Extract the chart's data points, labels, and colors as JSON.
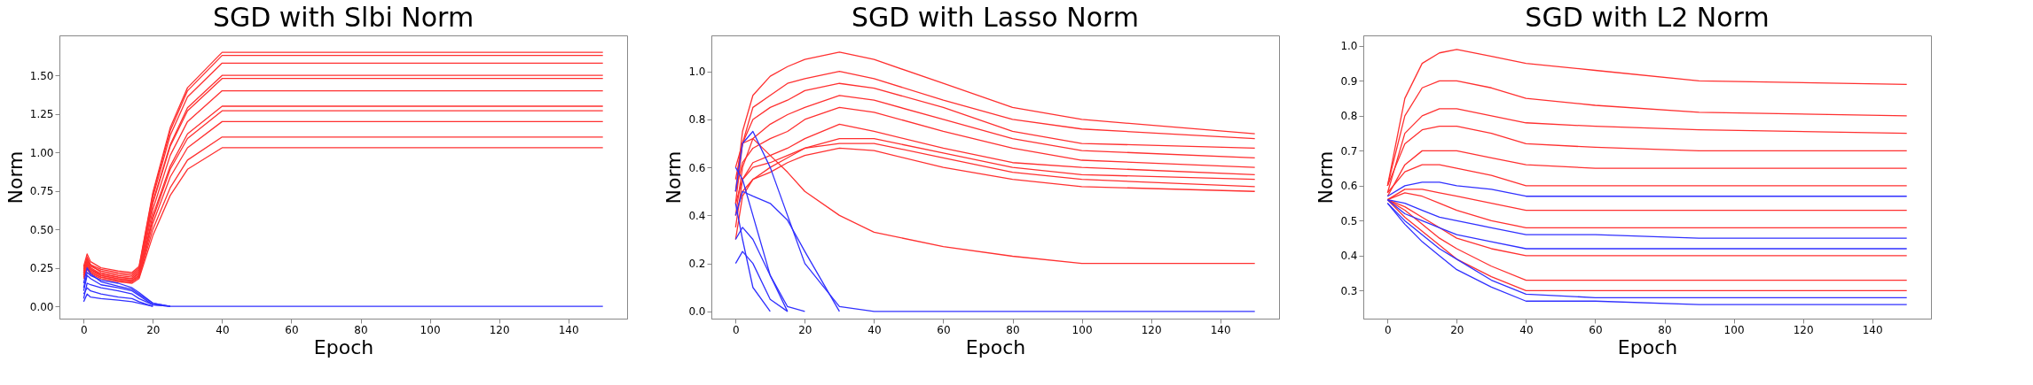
{
  "chart_data": [
    {
      "type": "line",
      "title": "SGD with Slbi Norm",
      "xlabel": "Epoch",
      "ylabel": "Norm",
      "x": [
        0,
        1,
        2,
        5,
        10,
        14,
        16,
        20,
        25,
        30,
        40,
        150
      ],
      "xlim": [
        -7,
        157
      ],
      "xticks": [
        0,
        20,
        40,
        60,
        80,
        100,
        120,
        140
      ],
      "ylim": [
        -0.08,
        1.76
      ],
      "yticks": [
        {
          "value": 0,
          "label": "0.00"
        },
        {
          "value": 0.25,
          "label": "0.25"
        },
        {
          "value": 0.5,
          "label": "0.50"
        },
        {
          "value": 0.75,
          "label": "0.75"
        },
        {
          "value": 1,
          "label": "1.00"
        },
        {
          "value": 1.25,
          "label": "1.25"
        },
        {
          "value": 1.5,
          "label": "1.50"
        }
      ],
      "series": [
        {
          "color": "#ff3030",
          "values": [
            0.26,
            0.34,
            0.29,
            0.25,
            0.23,
            0.22,
            0.26,
            0.74,
            1.16,
            1.42,
            1.65,
            1.65
          ]
        },
        {
          "color": "#ff3030",
          "values": [
            0.24,
            0.32,
            0.27,
            0.24,
            0.22,
            0.21,
            0.25,
            0.73,
            1.14,
            1.4,
            1.63,
            1.63
          ]
        },
        {
          "color": "#ff3030",
          "values": [
            0.22,
            0.3,
            0.26,
            0.23,
            0.21,
            0.2,
            0.24,
            0.71,
            1.11,
            1.36,
            1.58,
            1.58
          ]
        },
        {
          "color": "#ff3030",
          "values": [
            0.25,
            0.31,
            0.27,
            0.22,
            0.2,
            0.19,
            0.23,
            0.68,
            1.05,
            1.29,
            1.5,
            1.5
          ]
        },
        {
          "color": "#ff3030",
          "values": [
            0.23,
            0.29,
            0.25,
            0.21,
            0.19,
            0.18,
            0.22,
            0.67,
            1.04,
            1.27,
            1.48,
            1.48
          ]
        },
        {
          "color": "#ff3030",
          "values": [
            0.21,
            0.28,
            0.24,
            0.21,
            0.19,
            0.18,
            0.21,
            0.63,
            0.98,
            1.2,
            1.4,
            1.4
          ]
        },
        {
          "color": "#ff3030",
          "values": [
            0.22,
            0.27,
            0.24,
            0.2,
            0.18,
            0.17,
            0.2,
            0.59,
            0.91,
            1.12,
            1.3,
            1.3
          ]
        },
        {
          "color": "#ff3030",
          "values": [
            0.2,
            0.26,
            0.23,
            0.2,
            0.18,
            0.17,
            0.2,
            0.57,
            0.89,
            1.09,
            1.27,
            1.27
          ]
        },
        {
          "color": "#ff3030",
          "values": [
            0.19,
            0.25,
            0.22,
            0.19,
            0.17,
            0.16,
            0.19,
            0.54,
            0.84,
            1.03,
            1.2,
            1.2
          ]
        },
        {
          "color": "#ff3030",
          "values": [
            0.2,
            0.26,
            0.22,
            0.19,
            0.17,
            0.16,
            0.19,
            0.5,
            0.77,
            0.95,
            1.1,
            1.1
          ]
        },
        {
          "color": "#ff3030",
          "values": [
            0.18,
            0.24,
            0.21,
            0.18,
            0.16,
            0.15,
            0.18,
            0.46,
            0.72,
            0.89,
            1.03,
            1.03
          ]
        },
        {
          "color": "#3030ff",
          "values": [
            0.15,
            0.25,
            0.21,
            0.16,
            0.13,
            0.11,
            0.08,
            0.02,
            0,
            0,
            0,
            0
          ]
        },
        {
          "color": "#3030ff",
          "values": [
            0.1,
            0.2,
            0.18,
            0.14,
            0.12,
            0.1,
            0.07,
            0.01,
            0,
            null,
            null,
            null
          ]
        },
        {
          "color": "#3030ff",
          "values": [
            0.05,
            0.15,
            0.14,
            0.12,
            0.1,
            0.08,
            0.05,
            0.01,
            0,
            null,
            null,
            null
          ]
        },
        {
          "color": "#3030ff",
          "values": [
            0.12,
            0.22,
            0.2,
            0.17,
            0.15,
            0.12,
            0.09,
            0.02,
            0,
            null,
            null,
            null
          ]
        },
        {
          "color": "#3030ff",
          "values": [
            0.08,
            0.12,
            0.1,
            0.08,
            0.06,
            0.05,
            0.03,
            0,
            null,
            null,
            null,
            null
          ]
        },
        {
          "color": "#3030ff",
          "values": [
            0.03,
            0.08,
            0.06,
            0.05,
            0.04,
            0.03,
            0.02,
            0,
            null,
            null,
            null,
            null
          ]
        }
      ]
    },
    {
      "type": "line",
      "title": "SGD with Lasso Norm",
      "xlabel": "Epoch",
      "ylabel": "Norm",
      "x": [
        0,
        2,
        5,
        10,
        15,
        20,
        30,
        40,
        60,
        80,
        100,
        150
      ],
      "xlim": [
        -7,
        157
      ],
      "xticks": [
        0,
        20,
        40,
        60,
        80,
        100,
        120,
        140
      ],
      "ylim": [
        -0.03,
        1.15
      ],
      "yticks": [
        {
          "value": 0,
          "label": "0.0"
        },
        {
          "value": 0.2,
          "label": "0.2"
        },
        {
          "value": 0.4,
          "label": "0.4"
        },
        {
          "value": 0.6,
          "label": "0.6"
        },
        {
          "value": 0.8,
          "label": "0.8"
        },
        {
          "value": 1,
          "label": "1.0"
        }
      ],
      "series": [
        {
          "color": "#ff3030",
          "values": [
            0.5,
            0.75,
            0.9,
            0.98,
            1.02,
            1.05,
            1.08,
            1.05,
            0.95,
            0.85,
            0.8,
            0.74
          ]
        },
        {
          "color": "#ff3030",
          "values": [
            0.45,
            0.7,
            0.85,
            0.9,
            0.95,
            0.97,
            1.0,
            0.97,
            0.88,
            0.8,
            0.76,
            0.72
          ]
        },
        {
          "color": "#ff3030",
          "values": [
            0.55,
            0.7,
            0.8,
            0.85,
            0.88,
            0.92,
            0.95,
            0.93,
            0.85,
            0.75,
            0.7,
            0.68
          ]
        },
        {
          "color": "#ff3030",
          "values": [
            0.4,
            0.6,
            0.72,
            0.78,
            0.82,
            0.85,
            0.9,
            0.88,
            0.8,
            0.72,
            0.67,
            0.64
          ]
        },
        {
          "color": "#ff3030",
          "values": [
            0.5,
            0.62,
            0.68,
            0.72,
            0.75,
            0.8,
            0.85,
            0.83,
            0.75,
            0.68,
            0.63,
            0.6
          ]
        },
        {
          "color": "#ff3030",
          "values": [
            0.35,
            0.55,
            0.62,
            0.65,
            0.68,
            0.72,
            0.78,
            0.75,
            0.68,
            0.62,
            0.6,
            0.57
          ]
        },
        {
          "color": "#ff3030",
          "values": [
            0.45,
            0.55,
            0.6,
            0.62,
            0.65,
            0.68,
            0.7,
            0.7,
            0.64,
            0.58,
            0.55,
            0.52
          ]
        },
        {
          "color": "#ff3030",
          "values": [
            0.4,
            0.5,
            0.55,
            0.58,
            0.62,
            0.65,
            0.68,
            0.67,
            0.6,
            0.55,
            0.52,
            0.5
          ]
        },
        {
          "color": "#ff3030",
          "values": [
            0.3,
            0.48,
            0.55,
            0.6,
            0.64,
            0.68,
            0.72,
            0.72,
            0.66,
            0.6,
            0.57,
            0.55
          ]
        },
        {
          "color": "#ff3030",
          "values": [
            0.6,
            0.7,
            0.72,
            0.65,
            0.58,
            0.5,
            0.4,
            0.33,
            0.27,
            0.23,
            0.2,
            0.2
          ]
        },
        {
          "color": "#3030ff",
          "values": [
            0.5,
            0.7,
            0.75,
            0.6,
            0.4,
            0.2,
            0.02,
            0,
            0,
            0,
            0,
            0
          ]
        },
        {
          "color": "#3030ff",
          "values": [
            0.4,
            0.5,
            0.48,
            0.45,
            0.38,
            0.25,
            0,
            null,
            null,
            null,
            null,
            null
          ]
        },
        {
          "color": "#3030ff",
          "values": [
            0.6,
            0.55,
            0.4,
            0.15,
            0,
            null,
            null,
            null,
            null,
            null,
            null,
            null
          ]
        },
        {
          "color": "#3030ff",
          "values": [
            0.3,
            0.35,
            0.3,
            0.15,
            0.02,
            0,
            null,
            null,
            null,
            null,
            null,
            null
          ]
        },
        {
          "color": "#3030ff",
          "values": [
            0.45,
            0.3,
            0.1,
            0,
            null,
            null,
            null,
            null,
            null,
            null,
            null,
            null
          ]
        },
        {
          "color": "#3030ff",
          "values": [
            0.2,
            0.25,
            0.2,
            0.05,
            0,
            null,
            null,
            null,
            null,
            null,
            null,
            null
          ]
        }
      ]
    },
    {
      "type": "line",
      "title": "SGD with L2 Norm",
      "xlabel": "Epoch",
      "ylabel": "Norm",
      "x": [
        0,
        5,
        10,
        15,
        20,
        30,
        40,
        60,
        90,
        150
      ],
      "xlim": [
        -7,
        157
      ],
      "xticks": [
        0,
        20,
        40,
        60,
        80,
        100,
        120,
        140
      ],
      "ylim": [
        0.22,
        1.03
      ],
      "yticks": [
        0.3,
        0.4,
        0.5,
        0.6,
        0.7,
        0.8,
        0.9,
        {
          "value": 1,
          "label": "1.0"
        }
      ],
      "series": [
        {
          "color": "#ff3030",
          "values": [
            0.6,
            0.85,
            0.95,
            0.98,
            0.99,
            0.97,
            0.95,
            0.93,
            0.9,
            0.89
          ]
        },
        {
          "color": "#ff3030",
          "values": [
            0.6,
            0.8,
            0.88,
            0.9,
            0.9,
            0.88,
            0.85,
            0.83,
            0.81,
            0.8
          ]
        },
        {
          "color": "#ff3030",
          "values": [
            0.58,
            0.75,
            0.8,
            0.82,
            0.82,
            0.8,
            0.78,
            0.77,
            0.76,
            0.75
          ]
        },
        {
          "color": "#ff3030",
          "values": [
            0.6,
            0.72,
            0.76,
            0.77,
            0.77,
            0.75,
            0.72,
            0.71,
            0.7,
            0.7
          ]
        },
        {
          "color": "#ff3030",
          "values": [
            0.57,
            0.66,
            0.7,
            0.7,
            0.7,
            0.68,
            0.66,
            0.65,
            0.65,
            0.65
          ]
        },
        {
          "color": "#ff3030",
          "values": [
            0.58,
            0.64,
            0.66,
            0.66,
            0.65,
            0.63,
            0.6,
            0.6,
            0.6,
            0.6
          ]
        },
        {
          "color": "#ff3030",
          "values": [
            0.56,
            0.59,
            0.59,
            0.58,
            0.57,
            0.55,
            0.53,
            0.53,
            0.53,
            0.53
          ]
        },
        {
          "color": "#ff3030",
          "values": [
            0.56,
            0.58,
            0.57,
            0.55,
            0.53,
            0.5,
            0.48,
            0.48,
            0.48,
            0.48
          ]
        },
        {
          "color": "#ff3030",
          "values": [
            0.56,
            0.54,
            0.51,
            0.48,
            0.45,
            0.42,
            0.4,
            0.4,
            0.4,
            0.4
          ]
        },
        {
          "color": "#ff3030",
          "values": [
            0.56,
            0.53,
            0.49,
            0.45,
            0.42,
            0.37,
            0.33,
            0.33,
            0.33,
            0.33
          ]
        },
        {
          "color": "#ff3030",
          "values": [
            0.56,
            0.51,
            0.47,
            0.43,
            0.39,
            0.34,
            0.3,
            0.3,
            0.3,
            0.3
          ]
        },
        {
          "color": "#3030ff",
          "values": [
            0.57,
            0.6,
            0.61,
            0.61,
            0.6,
            0.59,
            0.57,
            0.57,
            0.57,
            0.57
          ]
        },
        {
          "color": "#3030ff",
          "values": [
            0.56,
            0.55,
            0.53,
            0.51,
            0.5,
            0.48,
            0.46,
            0.46,
            0.45,
            0.45
          ]
        },
        {
          "color": "#3030ff",
          "values": [
            0.55,
            0.5,
            0.46,
            0.42,
            0.39,
            0.33,
            0.29,
            0.28,
            0.28,
            0.28
          ]
        },
        {
          "color": "#3030ff",
          "values": [
            0.55,
            0.49,
            0.44,
            0.4,
            0.36,
            0.31,
            0.27,
            0.27,
            0.26,
            0.26
          ]
        },
        {
          "color": "#3030ff",
          "values": [
            0.56,
            0.52,
            0.5,
            0.48,
            0.46,
            0.44,
            0.42,
            0.42,
            0.42,
            0.42
          ]
        }
      ]
    }
  ]
}
